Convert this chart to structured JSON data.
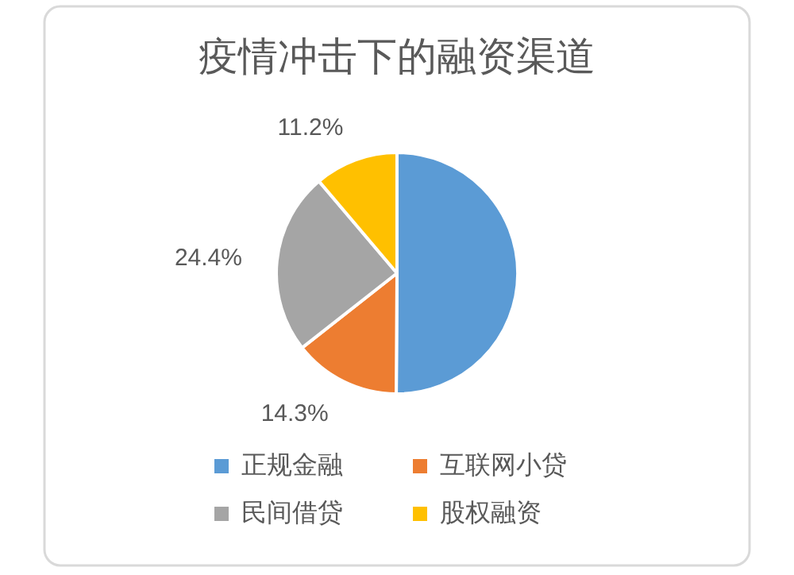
{
  "chart_data": {
    "type": "pie",
    "title": "疫情冲击下的融资渠道",
    "categories": [
      "正规金融",
      "互联网小贷",
      "民间借贷",
      "股权融资"
    ],
    "values": [
      50.1,
      14.3,
      24.4,
      11.2
    ],
    "colors": [
      "#5b9bd5",
      "#ed7d31",
      "#a5a5a5",
      "#ffc000"
    ],
    "value_labels": [
      null,
      "14.3%",
      "24.4%",
      "11.2%"
    ],
    "legend": "bottom"
  }
}
